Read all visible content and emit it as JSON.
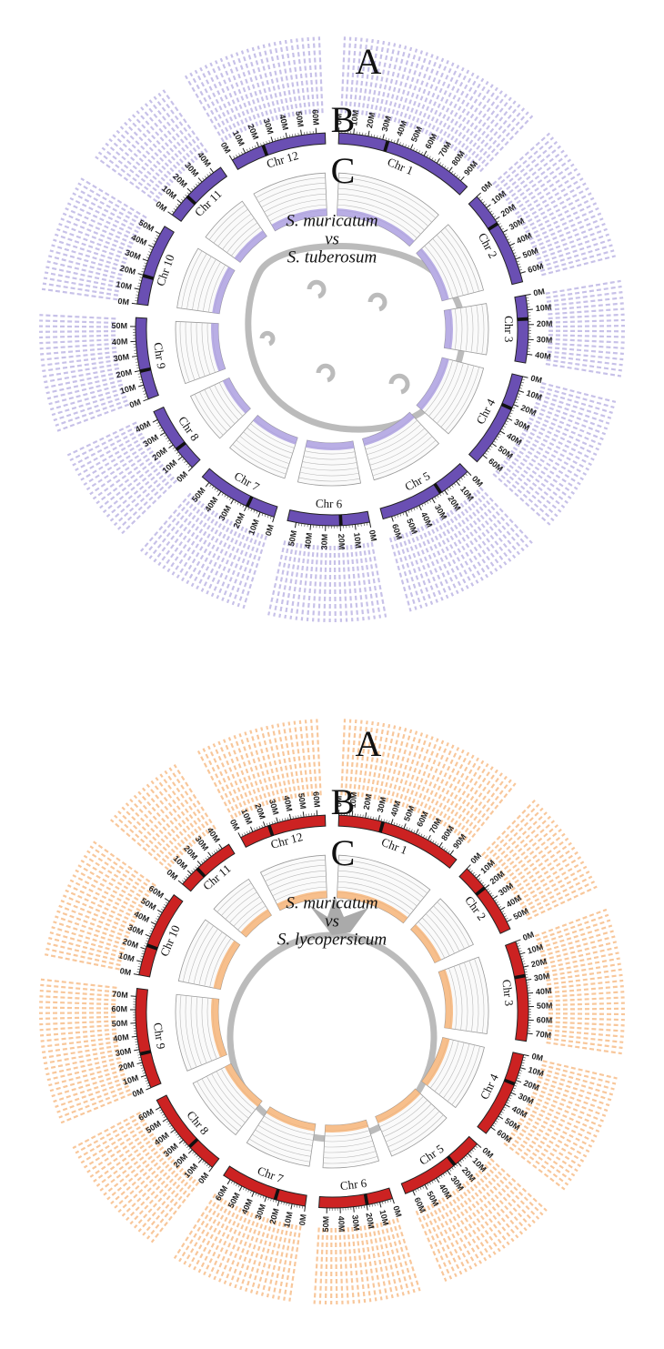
{
  "panels": [
    {
      "labels": [
        "A",
        "B",
        "C"
      ],
      "title": [
        "S. muricatum",
        "vs",
        "S. tuberosum"
      ],
      "chromosomes": [
        {
          "name": "Chr 1",
          "ticks": [
            "0M",
            "10M",
            "20M",
            "30M",
            "40M",
            "50M",
            "60M",
            "70M",
            "80M",
            "90M"
          ]
        },
        {
          "name": "Chr 2",
          "ticks": [
            "0M",
            "10M",
            "20M",
            "30M",
            "40M",
            "50M",
            "60M"
          ]
        },
        {
          "name": "Chr 3",
          "ticks": [
            "0M",
            "10M",
            "20M",
            "30M",
            "40M"
          ]
        },
        {
          "name": "Chr 4",
          "ticks": [
            "0M",
            "10M",
            "20M",
            "30M",
            "40M",
            "50M",
            "60M"
          ]
        },
        {
          "name": "Chr 5",
          "ticks": [
            "0M",
            "10M",
            "20M",
            "30M",
            "40M",
            "50M",
            "60M"
          ]
        },
        {
          "name": "Chr 6",
          "ticks": [
            "0M",
            "10M",
            "20M",
            "30M",
            "40M",
            "50M"
          ]
        },
        {
          "name": "Chr 7",
          "ticks": [
            "0M",
            "10M",
            "20M",
            "30M",
            "40M",
            "50M"
          ]
        },
        {
          "name": "Chr 8",
          "ticks": [
            "0M",
            "10M",
            "20M",
            "30M",
            "40M"
          ]
        },
        {
          "name": "Chr 9",
          "ticks": [
            "0M",
            "10M",
            "20M",
            "30M",
            "40M",
            "50M"
          ]
        },
        {
          "name": "Chr 10",
          "ticks": [
            "0M",
            "10M",
            "20M",
            "30M",
            "40M",
            "50M"
          ]
        },
        {
          "name": "Chr 11",
          "ticks": [
            "0M",
            "10M",
            "20M",
            "30M",
            "40M"
          ]
        },
        {
          "name": "Chr 12",
          "ticks": [
            "0M",
            "10M",
            "20M",
            "30M",
            "40M",
            "50M",
            "60M"
          ]
        }
      ]
    },
    {
      "labels": [
        "A",
        "B",
        "C"
      ],
      "title": [
        "S. muricatum",
        "vs",
        "S. lycopersicum"
      ],
      "chromosomes": [
        {
          "name": "Chr 1",
          "ticks": [
            "0M",
            "10M",
            "20M",
            "30M",
            "40M",
            "50M",
            "60M",
            "70M",
            "80M",
            "90M"
          ]
        },
        {
          "name": "Chr 2",
          "ticks": [
            "0M",
            "10M",
            "20M",
            "30M",
            "40M",
            "50M"
          ]
        },
        {
          "name": "Chr 3",
          "ticks": [
            "0M",
            "10M",
            "20M",
            "30M",
            "40M",
            "50M",
            "60M",
            "70M"
          ]
        },
        {
          "name": "Chr 4",
          "ticks": [
            "0M",
            "10M",
            "20M",
            "30M",
            "40M",
            "50M",
            "60M"
          ]
        },
        {
          "name": "Chr 5",
          "ticks": [
            "0M",
            "10M",
            "20M",
            "30M",
            "40M",
            "50M",
            "60M"
          ]
        },
        {
          "name": "Chr 6",
          "ticks": [
            "0M",
            "10M",
            "20M",
            "30M",
            "40M",
            "50M"
          ]
        },
        {
          "name": "Chr 7",
          "ticks": [
            "0M",
            "10M",
            "20M",
            "30M",
            "40M",
            "50M",
            "60M"
          ]
        },
        {
          "name": "Chr 8",
          "ticks": [
            "0M",
            "10M",
            "20M",
            "30M",
            "40M",
            "50M",
            "60M"
          ]
        },
        {
          "name": "Chr 9",
          "ticks": [
            "0M",
            "10M",
            "20M",
            "30M",
            "40M",
            "50M",
            "60M",
            "70M"
          ]
        },
        {
          "name": "Chr 10",
          "ticks": [
            "0M",
            "10M",
            "20M",
            "30M",
            "40M",
            "50M",
            "60M"
          ]
        },
        {
          "name": "Chr 11",
          "ticks": [
            "0M",
            "10M",
            "20M",
            "30M",
            "40M"
          ]
        },
        {
          "name": "Chr 12",
          "ticks": [
            "0M",
            "10M",
            "20M",
            "30M",
            "40M",
            "50M",
            "60M"
          ]
        }
      ]
    }
  ]
}
